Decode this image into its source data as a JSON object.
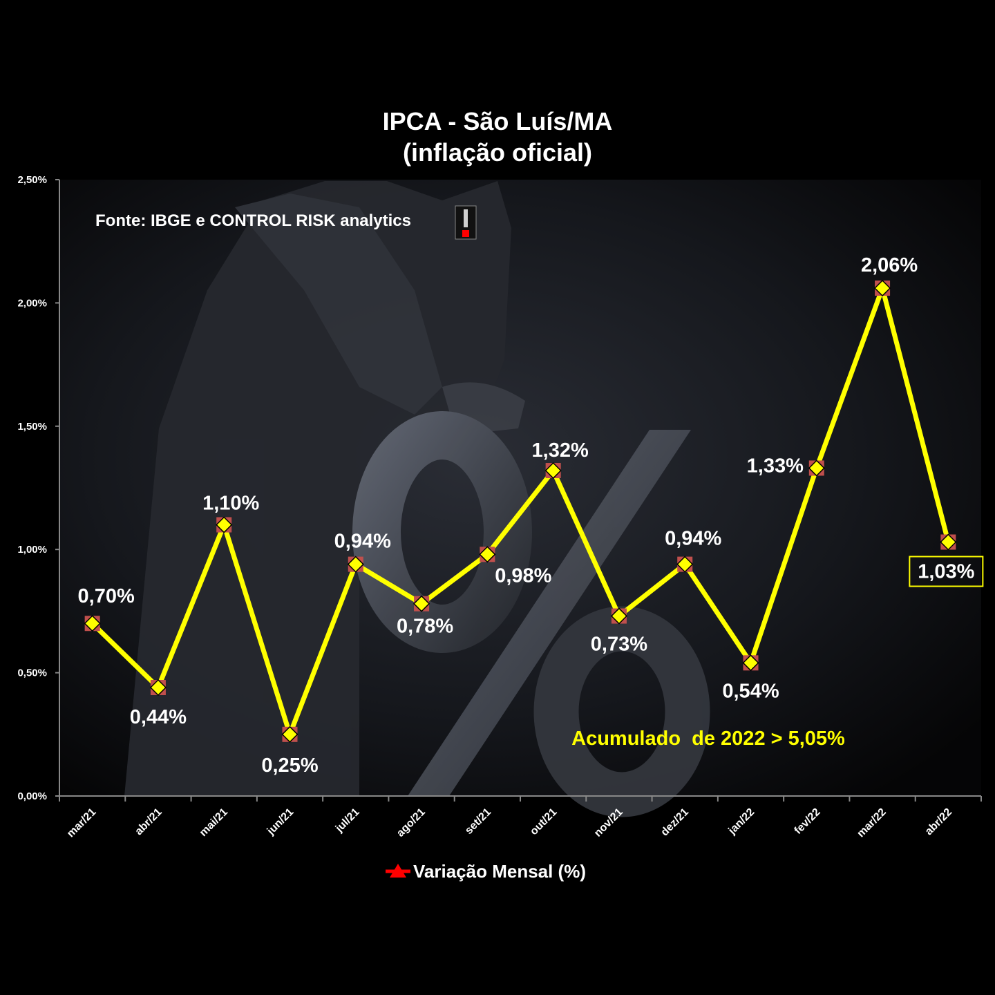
{
  "chart_data": {
    "type": "line",
    "title": "IPCA - São Luís/MA",
    "subtitle": "(inflação oficial)",
    "source": "Fonte: IBGE e CONTROL RISK analytics",
    "annotation": "Acumulado  de 2022 > 5,05%",
    "categories": [
      "mar/21",
      "abr/21",
      "mai/21",
      "jun/21",
      "jul/21",
      "ago/21",
      "set/21",
      "out/21",
      "nov/21",
      "dez/21",
      "jan/22",
      "fev/22",
      "mar/22",
      "abr/22"
    ],
    "series": [
      {
        "name": "Variação Mensal (%)",
        "values": [
          0.7,
          0.44,
          1.1,
          0.25,
          0.94,
          0.78,
          0.98,
          1.32,
          0.73,
          0.94,
          0.54,
          1.33,
          2.06,
          1.03
        ],
        "data_labels": [
          "0,70%",
          "0,44%",
          "1,10%",
          "0,25%",
          "0,94%",
          "0,78%",
          "0,98%",
          "1,32%",
          "0,73%",
          "0,94%",
          "0,54%",
          "1,33%",
          "2,06%",
          "1,03%"
        ]
      }
    ],
    "ylim": [
      0,
      2.5
    ],
    "yticks": [
      0,
      0.5,
      1.0,
      1.5,
      2.0,
      2.5
    ],
    "ytick_labels": [
      "0,00%",
      "0,50%",
      "1,00%",
      "1,50%",
      "2,00%",
      "2,50%"
    ],
    "legend_position": "bottom",
    "grid": false,
    "colors": {
      "line": "#ffff00",
      "marker_fill": "#ffff00",
      "marker_square": "#c0504d",
      "annotation": "#ffff00",
      "axis": "#888888",
      "legend_marker": "#ff0000"
    }
  }
}
